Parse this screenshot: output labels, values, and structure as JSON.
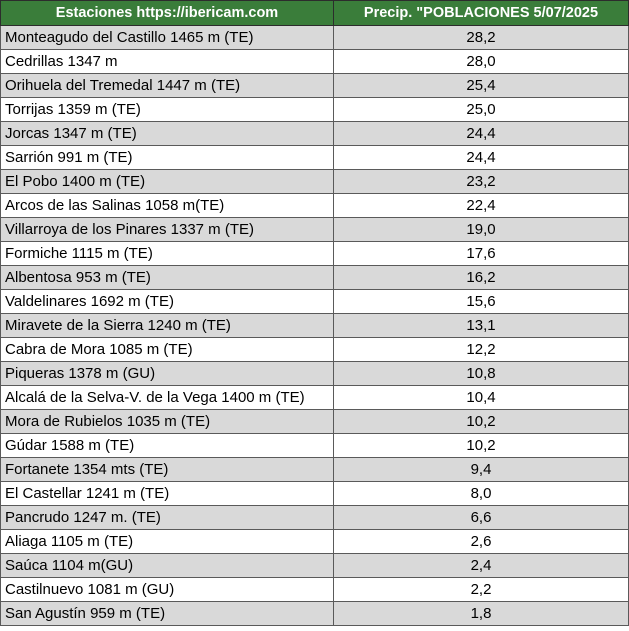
{
  "header": {
    "col1": "Estaciones https://ibericam.com",
    "col2": "Precip. \"POBLACIONES 5/07/2025"
  },
  "rows": [
    {
      "station": "Monteagudo del Castillo 1465 m (TE)",
      "precip": "28,2"
    },
    {
      "station": "Cedrillas 1347 m",
      "precip": "28,0"
    },
    {
      "station": "Orihuela del Tremedal 1447 m (TE)",
      "precip": "25,4"
    },
    {
      "station": "Torrijas 1359 m (TE)",
      "precip": "25,0"
    },
    {
      "station": "Jorcas 1347 m (TE)",
      "precip": "24,4"
    },
    {
      "station": "Sarrión 991 m (TE)",
      "precip": "24,4"
    },
    {
      "station": "El Pobo 1400 m (TE)",
      "precip": "23,2"
    },
    {
      "station": "Arcos de las Salinas 1058 m(TE)",
      "precip": "22,4"
    },
    {
      "station": "Villarroya de los Pinares 1337 m (TE)",
      "precip": "19,0"
    },
    {
      "station": "Formiche 1115 m (TE)",
      "precip": "17,6"
    },
    {
      "station": "Albentosa 953 m (TE)",
      "precip": "16,2"
    },
    {
      "station": "Valdelinares 1692 m (TE)",
      "precip": "15,6"
    },
    {
      "station": "Miravete de la Sierra 1240 m (TE)",
      "precip": "13,1"
    },
    {
      "station": "Cabra de Mora 1085 m (TE)",
      "precip": "12,2"
    },
    {
      "station": "Piqueras 1378 m (GU)",
      "precip": "10,8"
    },
    {
      "station": "Alcalá de la Selva-V. de la Vega 1400 m (TE)",
      "precip": "10,4"
    },
    {
      "station": "Mora de Rubielos 1035 m (TE)",
      "precip": "10,2"
    },
    {
      "station": "Gúdar 1588 m (TE)",
      "precip": "10,2"
    },
    {
      "station": "Fortanete 1354 mts (TE)",
      "precip": "9,4"
    },
    {
      "station": "El Castellar 1241 m (TE)",
      "precip": "8,0"
    },
    {
      "station": "Pancrudo 1247 m. (TE)",
      "precip": "6,6"
    },
    {
      "station": "Aliaga 1105 m (TE)",
      "precip": "2,6"
    },
    {
      "station": "Saúca 1104 m(GU)",
      "precip": "2,4"
    },
    {
      "station": "Castilnuevo 1081 m (GU)",
      "precip": "2,2"
    },
    {
      "station": "San Agustín 959 m (TE)",
      "precip": "1,8"
    }
  ]
}
